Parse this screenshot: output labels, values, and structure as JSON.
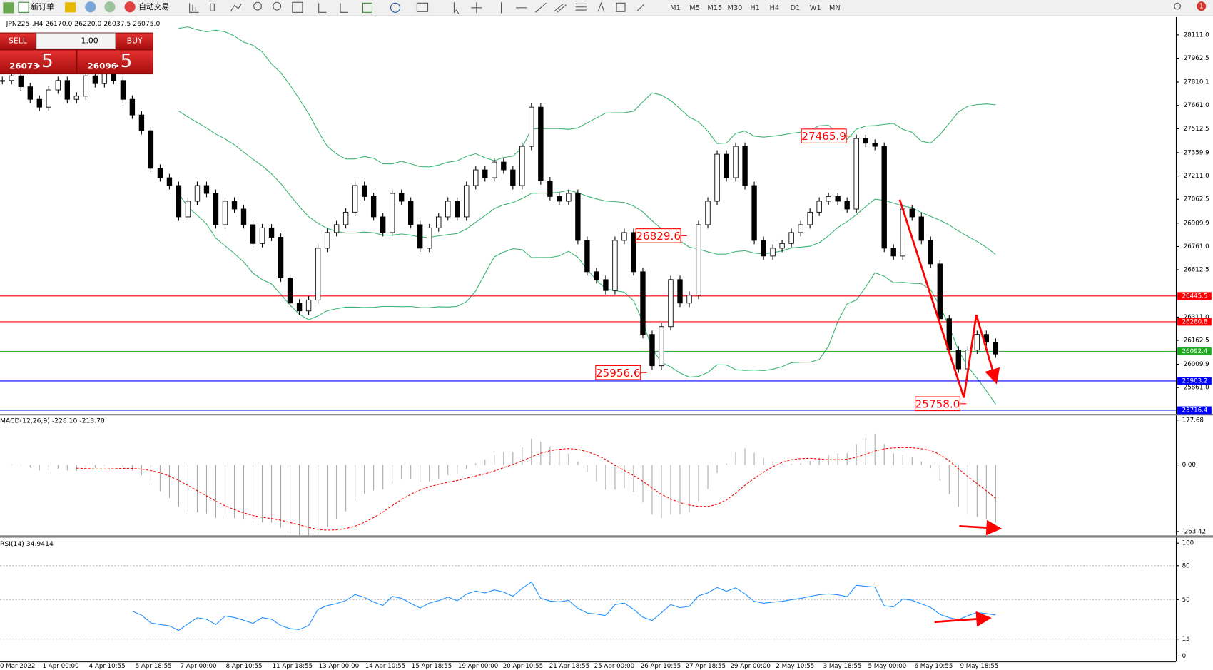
{
  "toolbar": {
    "new_order": "新订单",
    "auto_trading": "自动交易",
    "timeframes": [
      "M1",
      "M5",
      "M15",
      "M30",
      "H1",
      "H4",
      "D1",
      "W1",
      "MN"
    ],
    "notification_count": "1"
  },
  "trade_panel": {
    "sell": "SELL",
    "buy": "BUY",
    "lots": "1.00",
    "bid_main": "26073",
    "bid_tail": ".5",
    "ask_main": "26096",
    "ask_tail": ".5"
  },
  "chart_data": {
    "type": "candlestick",
    "header": "JPN225-,H4  26170.0 26220.0 26037.5 26075.0",
    "bull_color": "#ffffff",
    "bear_color": "#000000",
    "band_color": "#3cb371",
    "closes": [
      27820,
      27850,
      27780,
      27700,
      27650,
      27760,
      27820,
      27700,
      27720,
      27850,
      27800,
      27880,
      27820,
      27700,
      27600,
      27500,
      27260,
      27200,
      27150,
      26950,
      27050,
      27150,
      27100,
      26900,
      27050,
      27000,
      26900,
      26780,
      26880,
      26820,
      26560,
      26400,
      26350,
      26420,
      26750,
      26850,
      26900,
      26980,
      27150,
      27080,
      26950,
      26850,
      27100,
      27050,
      26900,
      26750,
      26880,
      26950,
      27050,
      26950,
      27150,
      27250,
      27200,
      27300,
      27250,
      27150,
      27400,
      27650,
      27180,
      27080,
      27050,
      27100,
      26800,
      26600,
      26550,
      26480,
      26800,
      26850,
      26600,
      26200,
      26000,
      26250,
      26550,
      26400,
      26450,
      26900,
      27050,
      27350,
      27200,
      27400,
      27150,
      26800,
      26700,
      26750,
      26780,
      26850,
      26900,
      26980,
      27050,
      27080,
      27050,
      27000,
      27450,
      27420,
      27400,
      26750,
      26700,
      27000,
      26950,
      26800,
      26650,
      26300,
      26100,
      25980,
      26100,
      26200,
      26150,
      26075
    ],
    "ylim": [
      25693,
      28225
    ],
    "yticks": [
      {
        "value": 28111.0,
        "label": "28111.0"
      },
      {
        "value": 27962.5,
        "label": "27962.5"
      },
      {
        "value": 27810.1,
        "label": "27810.1"
      },
      {
        "value": 27661.0,
        "label": "27661.0"
      },
      {
        "value": 27512.5,
        "label": "27512.5"
      },
      {
        "value": 27359.9,
        "label": "27359.9"
      },
      {
        "value": 27211.0,
        "label": "27211.0"
      },
      {
        "value": 27062.5,
        "label": "27062.5"
      },
      {
        "value": 26909.9,
        "label": "26909.9"
      },
      {
        "value": 26761.0,
        "label": "26761.0"
      },
      {
        "value": 26612.5,
        "label": "26612.5"
      },
      {
        "value": 26311.0,
        "label": "26311.0"
      },
      {
        "value": 26162.5,
        "label": "26162.5"
      },
      {
        "value": 26009.9,
        "label": "26009.9"
      },
      {
        "value": 25861.0,
        "label": "25861.0"
      }
    ],
    "hlines": [
      {
        "value": 26445.5,
        "label": "26445.5",
        "color": "#ff0000"
      },
      {
        "value": 26280.8,
        "label": "26280.8",
        "color": "#ff0000"
      },
      {
        "value": 26092.4,
        "label": "26092.4",
        "color": "#22aa22"
      },
      {
        "value": 25903.2,
        "label": "25903.2",
        "color": "#0000ff"
      },
      {
        "value": 25716.4,
        "label": "25716.4",
        "color": "#0000ff"
      }
    ],
    "annotations": [
      {
        "value": 27465.9,
        "label": "27465.9"
      },
      {
        "value": 26829.6,
        "label": "26829.6"
      },
      {
        "value": 25956.6,
        "label": "25956.6"
      },
      {
        "value": 25758.0,
        "label": "25758.0"
      }
    ],
    "dates": [
      "0 Mar 2022",
      "1 Apr 00:00",
      "4 Apr 10:55",
      "5 Apr 18:55",
      "7 Apr 00:00",
      "8 Apr 10:55",
      "11 Apr 18:55",
      "13 Apr 00:00",
      "14 Apr 10:55",
      "15 Apr 18:55",
      "19 Apr 00:00",
      "20 Apr 10:55",
      "21 Apr 18:55",
      "25 Apr 00:00",
      "26 Apr 10:55",
      "27 Apr 18:55",
      "29 Apr 00:00",
      "2 May 10:55",
      "3 May 18:55",
      "5 May 00:00",
      "6 May 10:55",
      "9 May 18:55"
    ]
  },
  "macd": {
    "label": "MACD(12,26,9) -228.10 -218.78",
    "ylim": [
      -263.42,
      177.68
    ],
    "yticks": [
      {
        "value": 177.68,
        "label": "177.68"
      },
      {
        "value": 0,
        "label": "0.00"
      },
      {
        "value": -263.42,
        "label": "-263.42"
      }
    ],
    "hist_color": "#a8a8a8",
    "signal_color": "#ff0000"
  },
  "rsi": {
    "label": "RSI(14) 34.9414",
    "ylim": [
      0,
      100
    ],
    "yticks": [
      100,
      80,
      50,
      15,
      0
    ],
    "levels": [
      80,
      50,
      15
    ],
    "color": "#1e90ff"
  }
}
